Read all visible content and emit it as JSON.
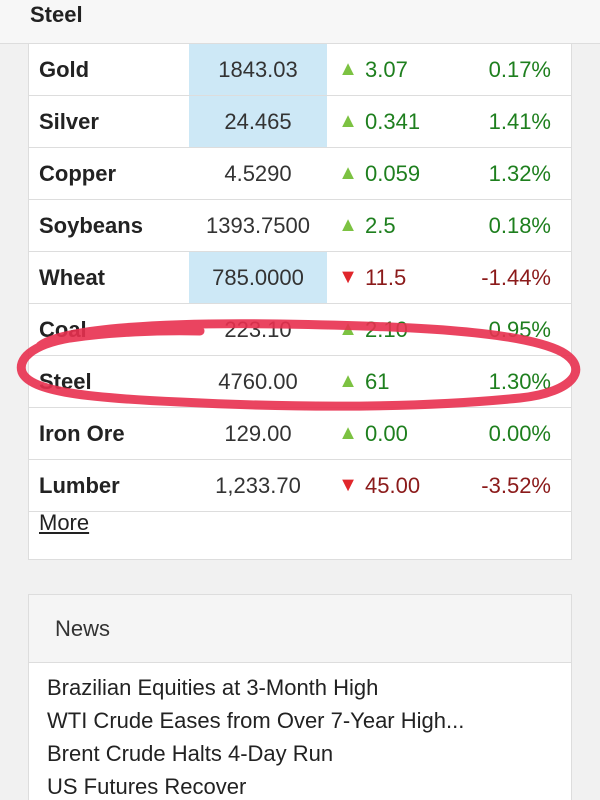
{
  "topbar": {
    "title": "Steel"
  },
  "markets": {
    "rows": [
      {
        "name": "Gold",
        "price": "1843.03",
        "direction": "up",
        "change": "3.07",
        "percent": "0.17%",
        "highlight": true
      },
      {
        "name": "Silver",
        "price": "24.465",
        "direction": "up",
        "change": "0.341",
        "percent": "1.41%",
        "highlight": true
      },
      {
        "name": "Copper",
        "price": "4.5290",
        "direction": "up",
        "change": "0.059",
        "percent": "1.32%",
        "highlight": false
      },
      {
        "name": "Soybeans",
        "price": "1393.7500",
        "direction": "up",
        "change": "2.5",
        "percent": "0.18%",
        "highlight": false
      },
      {
        "name": "Wheat",
        "price": "785.0000",
        "direction": "down",
        "change": "11.5",
        "percent": "-1.44%",
        "highlight": true
      },
      {
        "name": "Coal",
        "price": "223.10",
        "direction": "up",
        "change": "2.10",
        "percent": "0.95%",
        "highlight": false
      },
      {
        "name": "Steel",
        "price": "4760.00",
        "direction": "up",
        "change": "61",
        "percent": "1.30%",
        "highlight": false
      },
      {
        "name": "Iron Ore",
        "price": "129.00",
        "direction": "up",
        "change": "0.00",
        "percent": "0.00%",
        "highlight": false
      },
      {
        "name": "Lumber",
        "price": "1,233.70",
        "direction": "down",
        "change": "45.00",
        "percent": "-3.52%",
        "highlight": false
      }
    ],
    "more_label": "More"
  },
  "news": {
    "header": "News",
    "items": [
      "Brazilian Equities at 3-Month High",
      "WTI Crude Eases from Over 7-Year High...",
      "Brent Crude Halts 4-Day Run",
      "US Futures Recover"
    ]
  },
  "colors": {
    "highlight_cell": "#cde8f6",
    "up_arrow": "#7cc242",
    "down_arrow": "#e0262b",
    "positive_text": "#1e7f1e",
    "negative_text": "#8b1a1a",
    "annotation_circle": "#e8304f"
  },
  "icons": {
    "up": "triangle-up-icon",
    "down": "triangle-down-icon"
  }
}
